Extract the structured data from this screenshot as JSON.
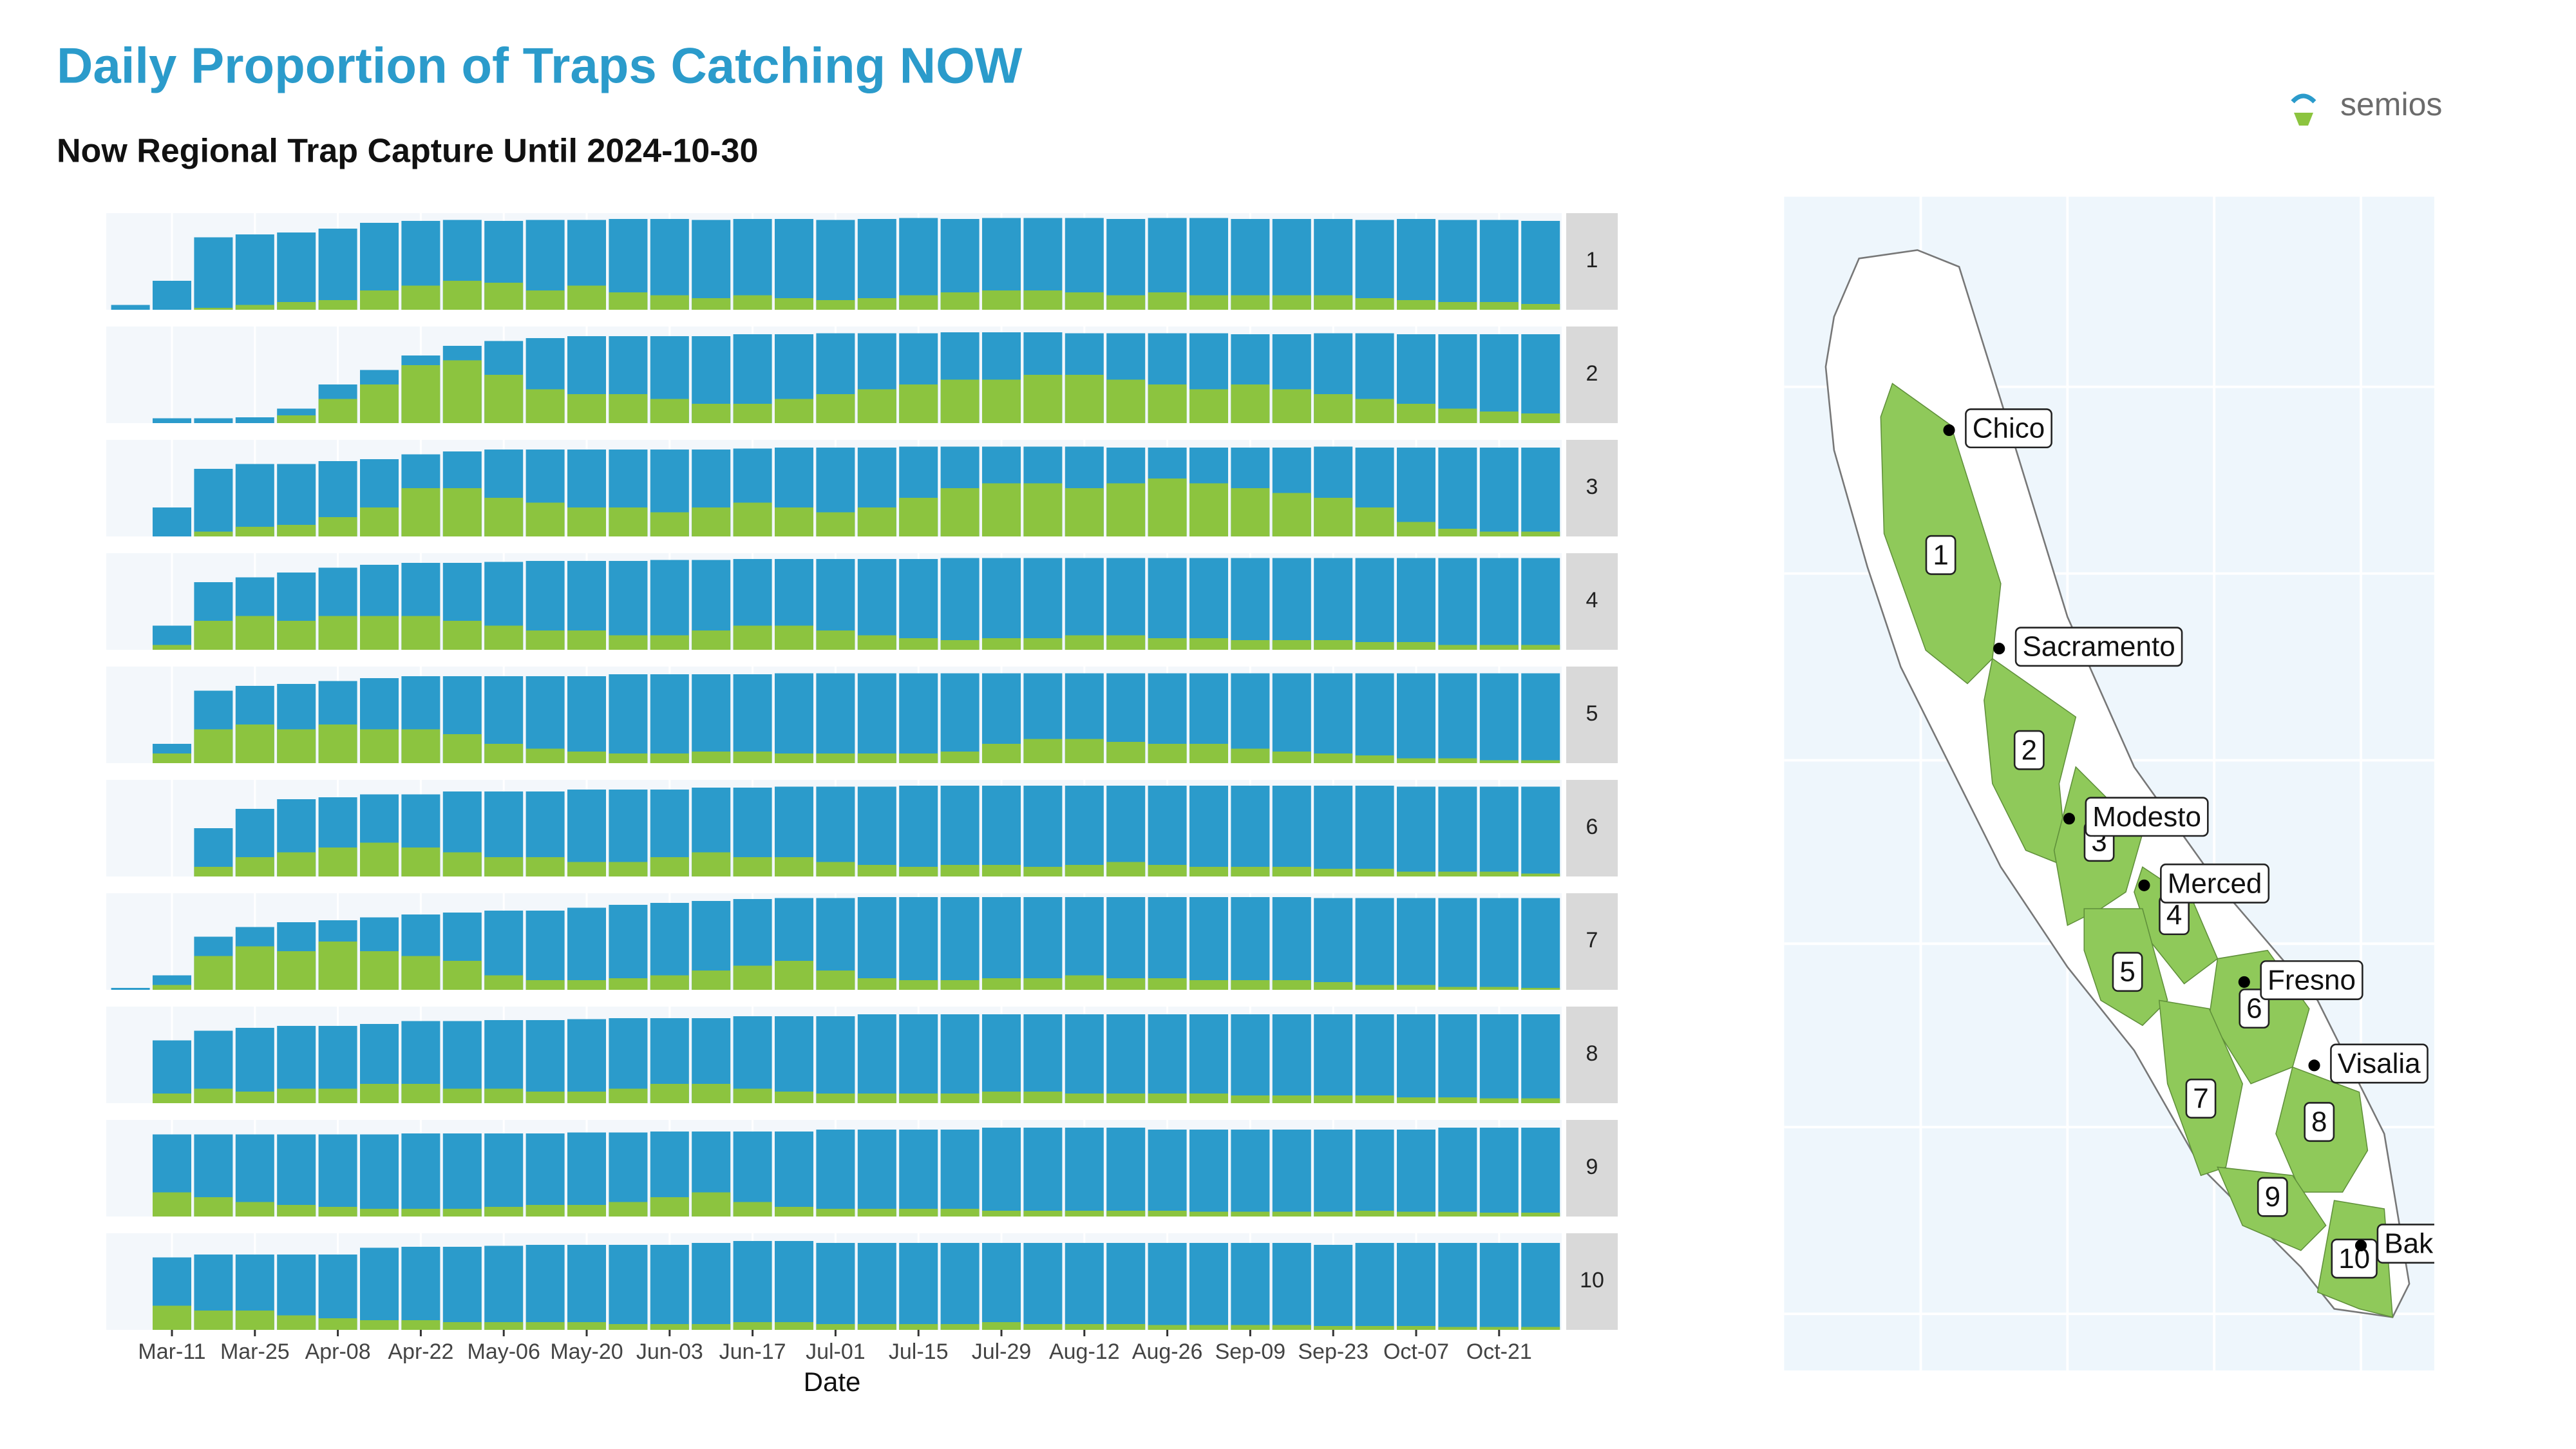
{
  "chart_data": {
    "type": "faceted-bar",
    "title": "Daily Proportion of Traps Catching NOW",
    "subtitle": "Now Regional Trap Capture Until 2024-10-30",
    "x_label": "Date",
    "logo": "semios",
    "ylim": [
      0,
      1
    ],
    "colors": [
      "#2b9bcb",
      "#8cc43f"
    ],
    "categories": [
      null,
      "Mar-11",
      null,
      "Mar-25",
      null,
      "Apr-08",
      null,
      "Apr-22",
      null,
      "May-06",
      null,
      "May-20",
      null,
      "Jun-03",
      null,
      "Jun-17",
      null,
      "Jul-01",
      null,
      "Jul-15",
      null,
      "Jul-29",
      null,
      "Aug-12",
      null,
      "Aug-26",
      null,
      "Sep-09",
      null,
      "Sep-23",
      null,
      "Oct-07",
      null,
      "Oct-21",
      null
    ],
    "panels": [
      {
        "label": "1",
        "series": [
          [
            0.05,
            0.3,
            0.75,
            0.78,
            0.8,
            0.84,
            0.9,
            0.92,
            0.93,
            0.92,
            0.93,
            0.93,
            0.94,
            0.94,
            0.93,
            0.94,
            0.94,
            0.93,
            0.94,
            0.95,
            0.94,
            0.95,
            0.95,
            0.95,
            0.94,
            0.95,
            0.95,
            0.94,
            0.94,
            0.94,
            0.93,
            0.94,
            0.93,
            0.93,
            0.92
          ],
          [
            0,
            0,
            0.02,
            0.05,
            0.08,
            0.1,
            0.2,
            0.25,
            0.3,
            0.28,
            0.2,
            0.25,
            0.18,
            0.15,
            0.12,
            0.15,
            0.12,
            0.1,
            0.12,
            0.15,
            0.18,
            0.2,
            0.2,
            0.18,
            0.15,
            0.18,
            0.15,
            0.15,
            0.15,
            0.15,
            0.12,
            0.1,
            0.08,
            0.08,
            0.06
          ]
        ]
      },
      {
        "label": "2",
        "series": [
          [
            0,
            0.05,
            0.05,
            0.06,
            0.15,
            0.4,
            0.55,
            0.7,
            0.8,
            0.85,
            0.88,
            0.9,
            0.9,
            0.9,
            0.9,
            0.92,
            0.92,
            0.93,
            0.93,
            0.93,
            0.94,
            0.94,
            0.94,
            0.93,
            0.93,
            0.93,
            0.93,
            0.92,
            0.92,
            0.93,
            0.93,
            0.92,
            0.92,
            0.92,
            0.92
          ],
          [
            0,
            0,
            0,
            0,
            0.08,
            0.25,
            0.4,
            0.6,
            0.65,
            0.5,
            0.35,
            0.3,
            0.3,
            0.25,
            0.2,
            0.2,
            0.25,
            0.3,
            0.35,
            0.4,
            0.45,
            0.45,
            0.5,
            0.5,
            0.45,
            0.4,
            0.35,
            0.4,
            0.35,
            0.3,
            0.25,
            0.2,
            0.15,
            0.12,
            0.1
          ]
        ]
      },
      {
        "label": "3",
        "series": [
          [
            0,
            0.3,
            0.7,
            0.75,
            0.75,
            0.78,
            0.8,
            0.85,
            0.88,
            0.9,
            0.9,
            0.9,
            0.9,
            0.9,
            0.9,
            0.91,
            0.92,
            0.92,
            0.92,
            0.93,
            0.93,
            0.93,
            0.93,
            0.93,
            0.92,
            0.92,
            0.92,
            0.92,
            0.92,
            0.93,
            0.92,
            0.92,
            0.92,
            0.92,
            0.92
          ],
          [
            0,
            0,
            0.05,
            0.1,
            0.12,
            0.2,
            0.3,
            0.5,
            0.5,
            0.4,
            0.35,
            0.3,
            0.3,
            0.25,
            0.3,
            0.35,
            0.3,
            0.25,
            0.3,
            0.4,
            0.5,
            0.55,
            0.55,
            0.5,
            0.55,
            0.6,
            0.55,
            0.5,
            0.45,
            0.4,
            0.3,
            0.15,
            0.08,
            0.05,
            0.05
          ]
        ]
      },
      {
        "label": "4",
        "series": [
          [
            0,
            0.25,
            0.7,
            0.75,
            0.8,
            0.85,
            0.88,
            0.9,
            0.9,
            0.91,
            0.92,
            0.92,
            0.92,
            0.93,
            0.93,
            0.94,
            0.94,
            0.94,
            0.94,
            0.94,
            0.95,
            0.95,
            0.95,
            0.95,
            0.95,
            0.95,
            0.95,
            0.95,
            0.95,
            0.95,
            0.95,
            0.95,
            0.95,
            0.95,
            0.95
          ],
          [
            0,
            0.05,
            0.3,
            0.35,
            0.3,
            0.35,
            0.35,
            0.35,
            0.3,
            0.25,
            0.2,
            0.2,
            0.15,
            0.15,
            0.2,
            0.25,
            0.25,
            0.2,
            0.15,
            0.12,
            0.1,
            0.12,
            0.12,
            0.15,
            0.15,
            0.12,
            0.12,
            0.1,
            0.1,
            0.1,
            0.08,
            0.08,
            0.05,
            0.05,
            0.05
          ]
        ]
      },
      {
        "label": "5",
        "series": [
          [
            0,
            0.2,
            0.75,
            0.8,
            0.82,
            0.85,
            0.88,
            0.9,
            0.9,
            0.9,
            0.9,
            0.9,
            0.92,
            0.92,
            0.92,
            0.92,
            0.93,
            0.93,
            0.93,
            0.93,
            0.93,
            0.93,
            0.93,
            0.93,
            0.93,
            0.93,
            0.93,
            0.93,
            0.93,
            0.93,
            0.93,
            0.93,
            0.93,
            0.93,
            0.93
          ],
          [
            0,
            0.1,
            0.35,
            0.4,
            0.35,
            0.4,
            0.35,
            0.35,
            0.3,
            0.2,
            0.15,
            0.12,
            0.1,
            0.1,
            0.12,
            0.12,
            0.1,
            0.1,
            0.1,
            0.1,
            0.12,
            0.2,
            0.25,
            0.25,
            0.22,
            0.2,
            0.2,
            0.15,
            0.12,
            0.1,
            0.08,
            0.05,
            0.05,
            0.03,
            0.03
          ]
        ]
      },
      {
        "label": "6",
        "series": [
          [
            0,
            0,
            0.5,
            0.7,
            0.8,
            0.82,
            0.85,
            0.85,
            0.88,
            0.88,
            0.88,
            0.9,
            0.9,
            0.9,
            0.92,
            0.92,
            0.93,
            0.93,
            0.93,
            0.94,
            0.94,
            0.94,
            0.94,
            0.94,
            0.94,
            0.94,
            0.94,
            0.94,
            0.94,
            0.94,
            0.94,
            0.93,
            0.93,
            0.93,
            0.93
          ],
          [
            0,
            0,
            0.1,
            0.2,
            0.25,
            0.3,
            0.35,
            0.3,
            0.25,
            0.2,
            0.2,
            0.15,
            0.15,
            0.2,
            0.25,
            0.2,
            0.2,
            0.15,
            0.12,
            0.1,
            0.12,
            0.12,
            0.1,
            0.12,
            0.15,
            0.12,
            0.1,
            0.1,
            0.1,
            0.08,
            0.08,
            0.05,
            0.05,
            0.05,
            0.03
          ]
        ]
      },
      {
        "label": "7",
        "series": [
          [
            0.02,
            0.15,
            0.55,
            0.65,
            0.7,
            0.72,
            0.75,
            0.78,
            0.8,
            0.82,
            0.82,
            0.85,
            0.88,
            0.9,
            0.92,
            0.94,
            0.95,
            0.95,
            0.96,
            0.96,
            0.96,
            0.96,
            0.96,
            0.96,
            0.96,
            0.96,
            0.96,
            0.96,
            0.96,
            0.95,
            0.95,
            0.95,
            0.95,
            0.95,
            0.95
          ],
          [
            0,
            0.05,
            0.35,
            0.45,
            0.4,
            0.5,
            0.4,
            0.35,
            0.3,
            0.15,
            0.1,
            0.1,
            0.12,
            0.15,
            0.2,
            0.25,
            0.3,
            0.2,
            0.12,
            0.1,
            0.1,
            0.12,
            0.12,
            0.15,
            0.12,
            0.12,
            0.1,
            0.1,
            0.1,
            0.08,
            0.05,
            0.05,
            0.03,
            0.03,
            0.02
          ]
        ]
      },
      {
        "label": "8",
        "series": [
          [
            0,
            0.65,
            0.75,
            0.78,
            0.8,
            0.8,
            0.82,
            0.85,
            0.85,
            0.86,
            0.86,
            0.87,
            0.88,
            0.88,
            0.88,
            0.9,
            0.9,
            0.9,
            0.92,
            0.92,
            0.92,
            0.92,
            0.92,
            0.92,
            0.92,
            0.92,
            0.92,
            0.92,
            0.92,
            0.92,
            0.92,
            0.92,
            0.92,
            0.92,
            0.92
          ],
          [
            0,
            0.1,
            0.15,
            0.12,
            0.15,
            0.15,
            0.2,
            0.2,
            0.15,
            0.15,
            0.12,
            0.12,
            0.15,
            0.2,
            0.2,
            0.15,
            0.12,
            0.1,
            0.1,
            0.1,
            0.1,
            0.12,
            0.12,
            0.1,
            0.1,
            0.1,
            0.1,
            0.08,
            0.08,
            0.08,
            0.08,
            0.06,
            0.06,
            0.05,
            0.05
          ]
        ]
      },
      {
        "label": "9",
        "series": [
          [
            0,
            0.85,
            0.85,
            0.85,
            0.85,
            0.85,
            0.85,
            0.86,
            0.86,
            0.86,
            0.86,
            0.87,
            0.87,
            0.88,
            0.88,
            0.88,
            0.88,
            0.9,
            0.9,
            0.9,
            0.9,
            0.92,
            0.92,
            0.92,
            0.92,
            0.9,
            0.9,
            0.9,
            0.9,
            0.9,
            0.9,
            0.9,
            0.92,
            0.92,
            0.92
          ],
          [
            0,
            0.25,
            0.2,
            0.15,
            0.12,
            0.1,
            0.08,
            0.08,
            0.08,
            0.1,
            0.12,
            0.12,
            0.15,
            0.2,
            0.25,
            0.15,
            0.1,
            0.08,
            0.08,
            0.08,
            0.08,
            0.06,
            0.06,
            0.06,
            0.06,
            0.06,
            0.05,
            0.05,
            0.05,
            0.05,
            0.06,
            0.05,
            0.05,
            0.04,
            0.04
          ]
        ]
      },
      {
        "label": "10",
        "series": [
          [
            0,
            0.75,
            0.78,
            0.78,
            0.78,
            0.78,
            0.85,
            0.86,
            0.86,
            0.87,
            0.88,
            0.88,
            0.88,
            0.88,
            0.9,
            0.92,
            0.92,
            0.9,
            0.9,
            0.9,
            0.9,
            0.9,
            0.9,
            0.9,
            0.9,
            0.9,
            0.9,
            0.9,
            0.9,
            0.88,
            0.9,
            0.9,
            0.9,
            0.9,
            0.9
          ],
          [
            0,
            0.25,
            0.2,
            0.2,
            0.15,
            0.12,
            0.1,
            0.1,
            0.08,
            0.08,
            0.08,
            0.08,
            0.06,
            0.06,
            0.06,
            0.08,
            0.08,
            0.06,
            0.06,
            0.06,
            0.06,
            0.08,
            0.06,
            0.06,
            0.06,
            0.05,
            0.05,
            0.05,
            0.05,
            0.04,
            0.04,
            0.04,
            0.03,
            0.03,
            0.03
          ]
        ]
      }
    ],
    "map": {
      "regions": [
        "1",
        "2",
        "3",
        "4",
        "5",
        "6",
        "7",
        "8",
        "9",
        "10"
      ],
      "cities": [
        "Chico",
        "Sacramento",
        "Modesto",
        "Merced",
        "Fresno",
        "Visalia",
        "Bak"
      ]
    }
  }
}
